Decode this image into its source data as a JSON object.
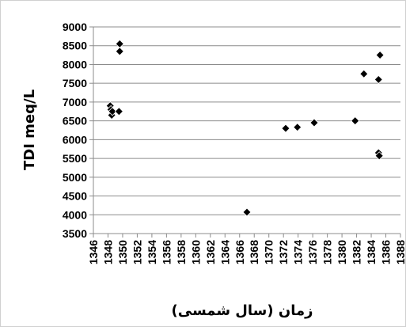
{
  "chart_data": {
    "type": "scatter",
    "title": "",
    "xlabel": "زمان (سال شمسی)",
    "ylabel": "TDI  meq/L",
    "xlim": [
      1346,
      1388
    ],
    "ylim": [
      3500,
      9000
    ],
    "x_ticks": [
      1346,
      1348,
      1350,
      1352,
      1354,
      1356,
      1358,
      1360,
      1362,
      1364,
      1366,
      1368,
      1370,
      1372,
      1374,
      1376,
      1378,
      1380,
      1382,
      1384,
      1386,
      1388
    ],
    "y_ticks": [
      3500,
      4000,
      4500,
      5000,
      5500,
      6000,
      6500,
      7000,
      7500,
      8000,
      8500,
      9000
    ],
    "grid": {
      "horizontal": true,
      "vertical": false
    },
    "marker": "diamond",
    "marker_color": "#000000",
    "series": [
      {
        "points": [
          {
            "x": 1348.3,
            "y": 6900
          },
          {
            "x": 1348.4,
            "y": 6800
          },
          {
            "x": 1348.5,
            "y": 6650
          },
          {
            "x": 1348.6,
            "y": 6750
          },
          {
            "x": 1349.5,
            "y": 6750
          },
          {
            "x": 1349.6,
            "y": 8550
          },
          {
            "x": 1349.6,
            "y": 8350
          },
          {
            "x": 1367.0,
            "y": 4070
          },
          {
            "x": 1372.3,
            "y": 6300
          },
          {
            "x": 1373.9,
            "y": 6330
          },
          {
            "x": 1376.2,
            "y": 6450
          },
          {
            "x": 1381.8,
            "y": 6500
          },
          {
            "x": 1383.0,
            "y": 7750
          },
          {
            "x": 1385.0,
            "y": 7600
          },
          {
            "x": 1385.2,
            "y": 8250
          },
          {
            "x": 1385.0,
            "y": 5650
          },
          {
            "x": 1385.1,
            "y": 5570
          }
        ]
      }
    ]
  }
}
